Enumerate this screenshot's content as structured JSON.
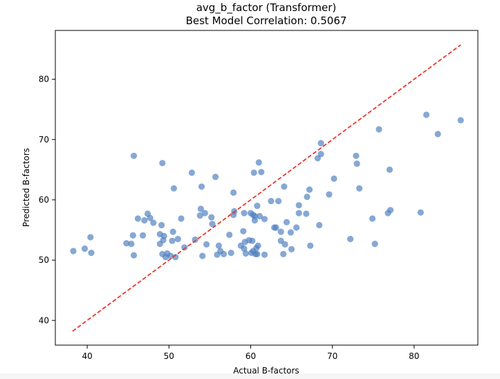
{
  "chart_data": {
    "type": "scatter",
    "title": "avg_b_factor (Transformer)",
    "subtitle": "Best Model Correlation: 0.5067",
    "xlabel": "Actual B-factors",
    "ylabel": "Predicted B-factors",
    "xlim": [
      36.1,
      87.8
    ],
    "ylim": [
      35.9,
      88.1
    ],
    "xticks": [
      40,
      50,
      60,
      70,
      80
    ],
    "yticks": [
      40,
      50,
      60,
      70,
      80
    ],
    "grid": false,
    "reference_line": {
      "x": [
        38.2,
        85.7
      ],
      "y": [
        38.2,
        85.7
      ],
      "color": "#e8382e",
      "style": "dashed"
    },
    "series": [
      {
        "color": "#4c7fbf",
        "points": [
          [
            38.3,
            51.5
          ],
          [
            39.7,
            51.9
          ],
          [
            40.4,
            53.8
          ],
          [
            40.5,
            51.2
          ],
          [
            44.8,
            52.8
          ],
          [
            45.4,
            52.7
          ],
          [
            45.6,
            54.1
          ],
          [
            45.7,
            50.8
          ],
          [
            45.7,
            67.3
          ],
          [
            46.2,
            56.9
          ],
          [
            46.8,
            54.1
          ],
          [
            47.0,
            56.6
          ],
          [
            47.4,
            57.7
          ],
          [
            47.7,
            57.0
          ],
          [
            48.1,
            56.2
          ],
          [
            48.9,
            52.7
          ],
          [
            48.9,
            54.3
          ],
          [
            49.1,
            55.8
          ],
          [
            49.2,
            51.0
          ],
          [
            49.2,
            66.1
          ],
          [
            49.3,
            53.3
          ],
          [
            49.4,
            54.0
          ],
          [
            49.6,
            50.5
          ],
          [
            49.8,
            51.1
          ],
          [
            50.2,
            50.7
          ],
          [
            50.4,
            53.2
          ],
          [
            50.5,
            54.7
          ],
          [
            50.6,
            61.9
          ],
          [
            50.8,
            50.5
          ],
          [
            51.1,
            53.5
          ],
          [
            51.5,
            56.9
          ],
          [
            51.9,
            52.1
          ],
          [
            52.8,
            64.5
          ],
          [
            53.2,
            53.4
          ],
          [
            53.8,
            57.4
          ],
          [
            53.9,
            58.5
          ],
          [
            54.0,
            62.2
          ],
          [
            54.1,
            50.7
          ],
          [
            54.4,
            57.8
          ],
          [
            54.6,
            52.6
          ],
          [
            55.2,
            57.1
          ],
          [
            55.3,
            56.0
          ],
          [
            55.7,
            63.8
          ],
          [
            55.9,
            50.9
          ],
          [
            56.1,
            52.4
          ],
          [
            56.3,
            51.5
          ],
          [
            56.7,
            51.0
          ],
          [
            57.4,
            54.2
          ],
          [
            57.6,
            51.2
          ],
          [
            57.9,
            61.2
          ],
          [
            57.9,
            57.5
          ],
          [
            58.0,
            58.1
          ],
          [
            58.8,
            52.4
          ],
          [
            59.1,
            54.8
          ],
          [
            59.2,
            57.8
          ],
          [
            59.2,
            51.9
          ],
          [
            59.3,
            53.0
          ],
          [
            59.4,
            51.1
          ],
          [
            59.8,
            53.3
          ],
          [
            60.0,
            57.8
          ],
          [
            60.1,
            51.2
          ],
          [
            60.2,
            53.2
          ],
          [
            60.3,
            51.5
          ],
          [
            60.3,
            57.5
          ],
          [
            60.4,
            64.5
          ],
          [
            60.5,
            57.3
          ],
          [
            60.5,
            56.6
          ],
          [
            60.6,
            51.0
          ],
          [
            60.7,
            52.0
          ],
          [
            60.8,
            51.0
          ],
          [
            60.8,
            59.0
          ],
          [
            60.9,
            52.4
          ],
          [
            61.0,
            66.2
          ],
          [
            61.1,
            57.3
          ],
          [
            61.3,
            64.6
          ],
          [
            61.7,
            56.8
          ],
          [
            61.7,
            50.9
          ],
          [
            62.5,
            59.8
          ],
          [
            62.9,
            55.4
          ],
          [
            63.1,
            55.4
          ],
          [
            63.4,
            59.8
          ],
          [
            63.7,
            53.2
          ],
          [
            63.7,
            54.7
          ],
          [
            64.0,
            51.0
          ],
          [
            64.1,
            62.2
          ],
          [
            64.2,
            52.6
          ],
          [
            64.4,
            56.3
          ],
          [
            64.9,
            54.6
          ],
          [
            65.0,
            51.8
          ],
          [
            65.6,
            55.4
          ],
          [
            65.9,
            57.8
          ],
          [
            65.9,
            59.1
          ],
          [
            66.8,
            57.7
          ],
          [
            66.9,
            60.5
          ],
          [
            67.2,
            61.7
          ],
          [
            67.3,
            52.4
          ],
          [
            68.2,
            66.9
          ],
          [
            68.4,
            55.8
          ],
          [
            68.6,
            67.6
          ],
          [
            68.6,
            69.4
          ],
          [
            69.6,
            60.9
          ],
          [
            70.2,
            63.5
          ],
          [
            72.2,
            53.5
          ],
          [
            72.9,
            67.3
          ],
          [
            73.0,
            66.0
          ],
          [
            73.3,
            61.9
          ],
          [
            74.9,
            56.9
          ],
          [
            75.2,
            52.7
          ],
          [
            75.7,
            71.7
          ],
          [
            76.8,
            57.8
          ],
          [
            77.0,
            65.0
          ],
          [
            77.1,
            58.3
          ],
          [
            80.8,
            57.9
          ],
          [
            81.5,
            74.1
          ],
          [
            82.9,
            70.9
          ],
          [
            85.7,
            73.2
          ]
        ]
      }
    ]
  }
}
